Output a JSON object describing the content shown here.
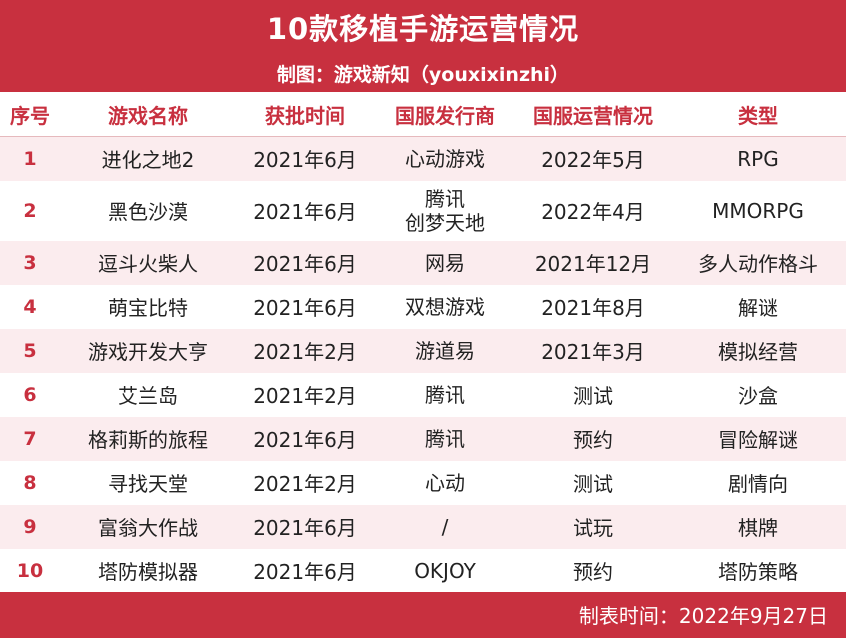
{
  "header": {
    "title": "10款移植手游运营情况",
    "subtitle": "制图：游戏新知（youxixinzhi）"
  },
  "columns": [
    "序号",
    "游戏名称",
    "获批时间",
    "国服发行商",
    "国服运营情况",
    "类型"
  ],
  "rows": [
    {
      "idx": "1",
      "name": "进化之地2",
      "approved": "2021年6月",
      "publisher": [
        "心动游戏"
      ],
      "status": "2022年5月",
      "genre": "RPG"
    },
    {
      "idx": "2",
      "name": "黑色沙漠",
      "approved": "2021年6月",
      "publisher": [
        "腾讯",
        "创梦天地"
      ],
      "status": "2022年4月",
      "genre": "MMORPG"
    },
    {
      "idx": "3",
      "name": "逗斗火柴人",
      "approved": "2021年6月",
      "publisher": [
        "网易"
      ],
      "status": "2021年12月",
      "genre": "多人动作格斗"
    },
    {
      "idx": "4",
      "name": "萌宝比特",
      "approved": "2021年6月",
      "publisher": [
        "双想游戏"
      ],
      "status": "2021年8月",
      "genre": "解谜"
    },
    {
      "idx": "5",
      "name": "游戏开发大亨",
      "approved": "2021年2月",
      "publisher": [
        "游道易"
      ],
      "status": "2021年3月",
      "genre": "模拟经营"
    },
    {
      "idx": "6",
      "name": "艾兰岛",
      "approved": "2021年2月",
      "publisher": [
        "腾讯"
      ],
      "status": "测试",
      "genre": "沙盒"
    },
    {
      "idx": "7",
      "name": "格莉斯的旅程",
      "approved": "2021年6月",
      "publisher": [
        "腾讯"
      ],
      "status": "预约",
      "genre": "冒险解谜"
    },
    {
      "idx": "8",
      "name": "寻找天堂",
      "approved": "2021年2月",
      "publisher": [
        "心动"
      ],
      "status": "测试",
      "genre": "剧情向"
    },
    {
      "idx": "9",
      "name": "富翁大作战",
      "approved": "2021年6月",
      "publisher": [
        "/"
      ],
      "status": "试玩",
      "genre": "棋牌"
    },
    {
      "idx": "10",
      "name": "塔防模拟器",
      "approved": "2021年6月",
      "publisher": [
        "OKJOY"
      ],
      "status": "预约",
      "genre": "塔防策略"
    }
  ],
  "footer": {
    "text": "制表时间：2022年9月27日"
  },
  "colors": {
    "accent": "#c8303f",
    "stripe": "#fbecee"
  }
}
